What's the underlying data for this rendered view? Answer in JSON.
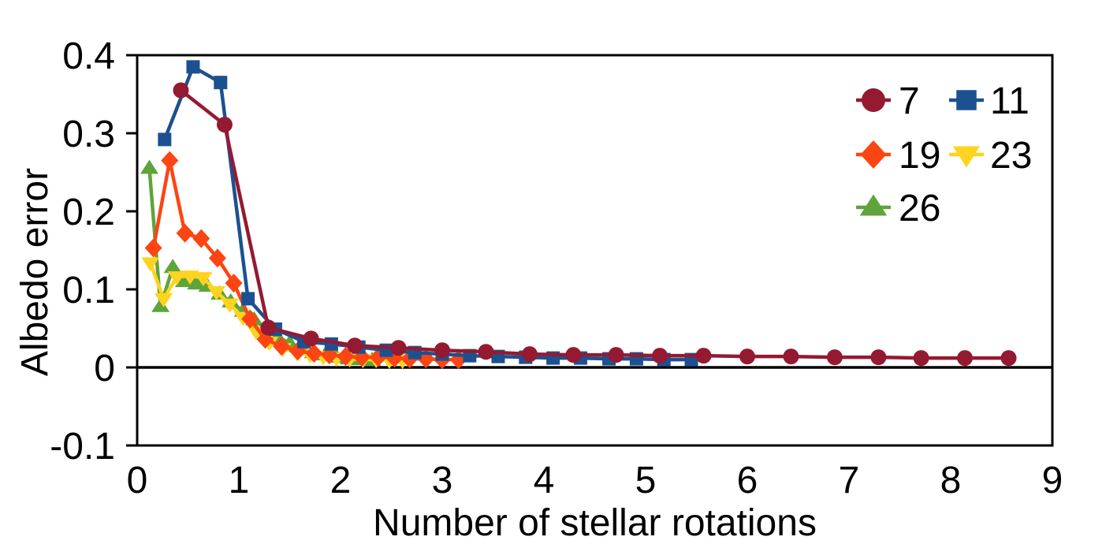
{
  "figure": {
    "ylabel": "Albedo error",
    "xlabel": "Number of stellar rotations"
  },
  "chart_data": {
    "type": "line",
    "title": "",
    "xlabel": "Number of stellar rotations",
    "ylabel": "Albedo error",
    "xlim": [
      0,
      9
    ],
    "ylim": [
      -0.1,
      0.4
    ],
    "x_ticks": [
      0,
      1,
      2,
      3,
      4,
      5,
      6,
      7,
      8,
      9
    ],
    "x_tick_labels": [
      "0",
      "1",
      "2",
      "3",
      "4",
      "5",
      "6",
      "7",
      "8",
      "9"
    ],
    "y_ticks": [
      0.4,
      0.3,
      0.2,
      0.1,
      0,
      -0.1
    ],
    "y_tick_labels": [
      "0.4",
      "0.3",
      "0.2",
      "0.1",
      "0",
      "-0.1"
    ],
    "grid": false,
    "zero_line": true,
    "legend_position": "upper-right-inside",
    "legend_columns": 2,
    "series": [
      {
        "name": "7",
        "marker": "circle",
        "color": "#941a31",
        "x": [
          0.43,
          0.86,
          1.29,
          1.71,
          2.14,
          2.57,
          3.0,
          3.43,
          3.86,
          4.29,
          4.71,
          5.14,
          5.57,
          6.0,
          6.43,
          6.86,
          7.29,
          7.71,
          8.14,
          8.57
        ],
        "y": [
          0.355,
          0.311,
          0.051,
          0.037,
          0.028,
          0.025,
          0.022,
          0.02,
          0.017,
          0.016,
          0.016,
          0.015,
          0.015,
          0.014,
          0.014,
          0.013,
          0.013,
          0.012,
          0.012,
          0.012
        ]
      },
      {
        "name": "11",
        "marker": "square",
        "color": "#1c5191",
        "x": [
          0.27,
          0.55,
          0.82,
          1.09,
          1.36,
          1.64,
          1.91,
          2.18,
          2.45,
          2.73,
          3.0,
          3.27,
          3.55,
          3.82,
          4.09,
          4.36,
          4.64,
          4.91,
          5.18,
          5.45
        ],
        "y": [
          0.292,
          0.385,
          0.365,
          0.088,
          0.049,
          0.033,
          0.03,
          0.026,
          0.022,
          0.019,
          0.017,
          0.015,
          0.014,
          0.013,
          0.012,
          0.012,
          0.011,
          0.011,
          0.01,
          0.01
        ]
      },
      {
        "name": "19",
        "marker": "diamond",
        "color": "#fb4513",
        "x": [
          0.16,
          0.32,
          0.47,
          0.63,
          0.79,
          0.95,
          1.11,
          1.26,
          1.42,
          1.58,
          1.74,
          1.89,
          2.05,
          2.21,
          2.37,
          2.53,
          2.68,
          2.84,
          3.0,
          3.16
        ],
        "y": [
          0.153,
          0.265,
          0.172,
          0.165,
          0.14,
          0.108,
          0.062,
          0.036,
          0.027,
          0.021,
          0.018,
          0.016,
          0.014,
          0.013,
          0.013,
          0.012,
          0.011,
          0.011,
          0.01,
          0.01
        ]
      },
      {
        "name": "23",
        "marker": "triangle-down",
        "color": "#ffd420",
        "x": [
          0.13,
          0.26,
          0.39,
          0.52,
          0.65,
          0.78,
          0.91,
          1.04,
          1.17,
          1.3,
          1.43,
          1.57,
          1.7,
          1.83,
          1.96,
          2.09,
          2.22,
          2.35,
          2.48,
          2.61
        ],
        "y": [
          0.134,
          0.088,
          0.116,
          0.117,
          0.115,
          0.097,
          0.081,
          0.064,
          0.046,
          0.032,
          0.024,
          0.019,
          0.016,
          0.014,
          0.012,
          0.011,
          0.01,
          0.01,
          0.009,
          0.009
        ]
      },
      {
        "name": "26",
        "marker": "triangle-up",
        "color": "#5ea43a",
        "x": [
          0.12,
          0.23,
          0.35,
          0.46,
          0.58,
          0.69,
          0.81,
          0.92,
          1.04,
          1.15,
          1.27,
          1.38,
          1.5,
          1.62,
          1.73,
          1.85,
          1.96,
          2.08,
          2.19,
          2.31
        ],
        "y": [
          0.255,
          0.078,
          0.128,
          0.11,
          0.107,
          0.104,
          0.094,
          0.084,
          0.072,
          0.061,
          0.049,
          0.039,
          0.031,
          0.024,
          0.019,
          0.016,
          0.013,
          0.011,
          0.01,
          0.009
        ]
      }
    ]
  }
}
